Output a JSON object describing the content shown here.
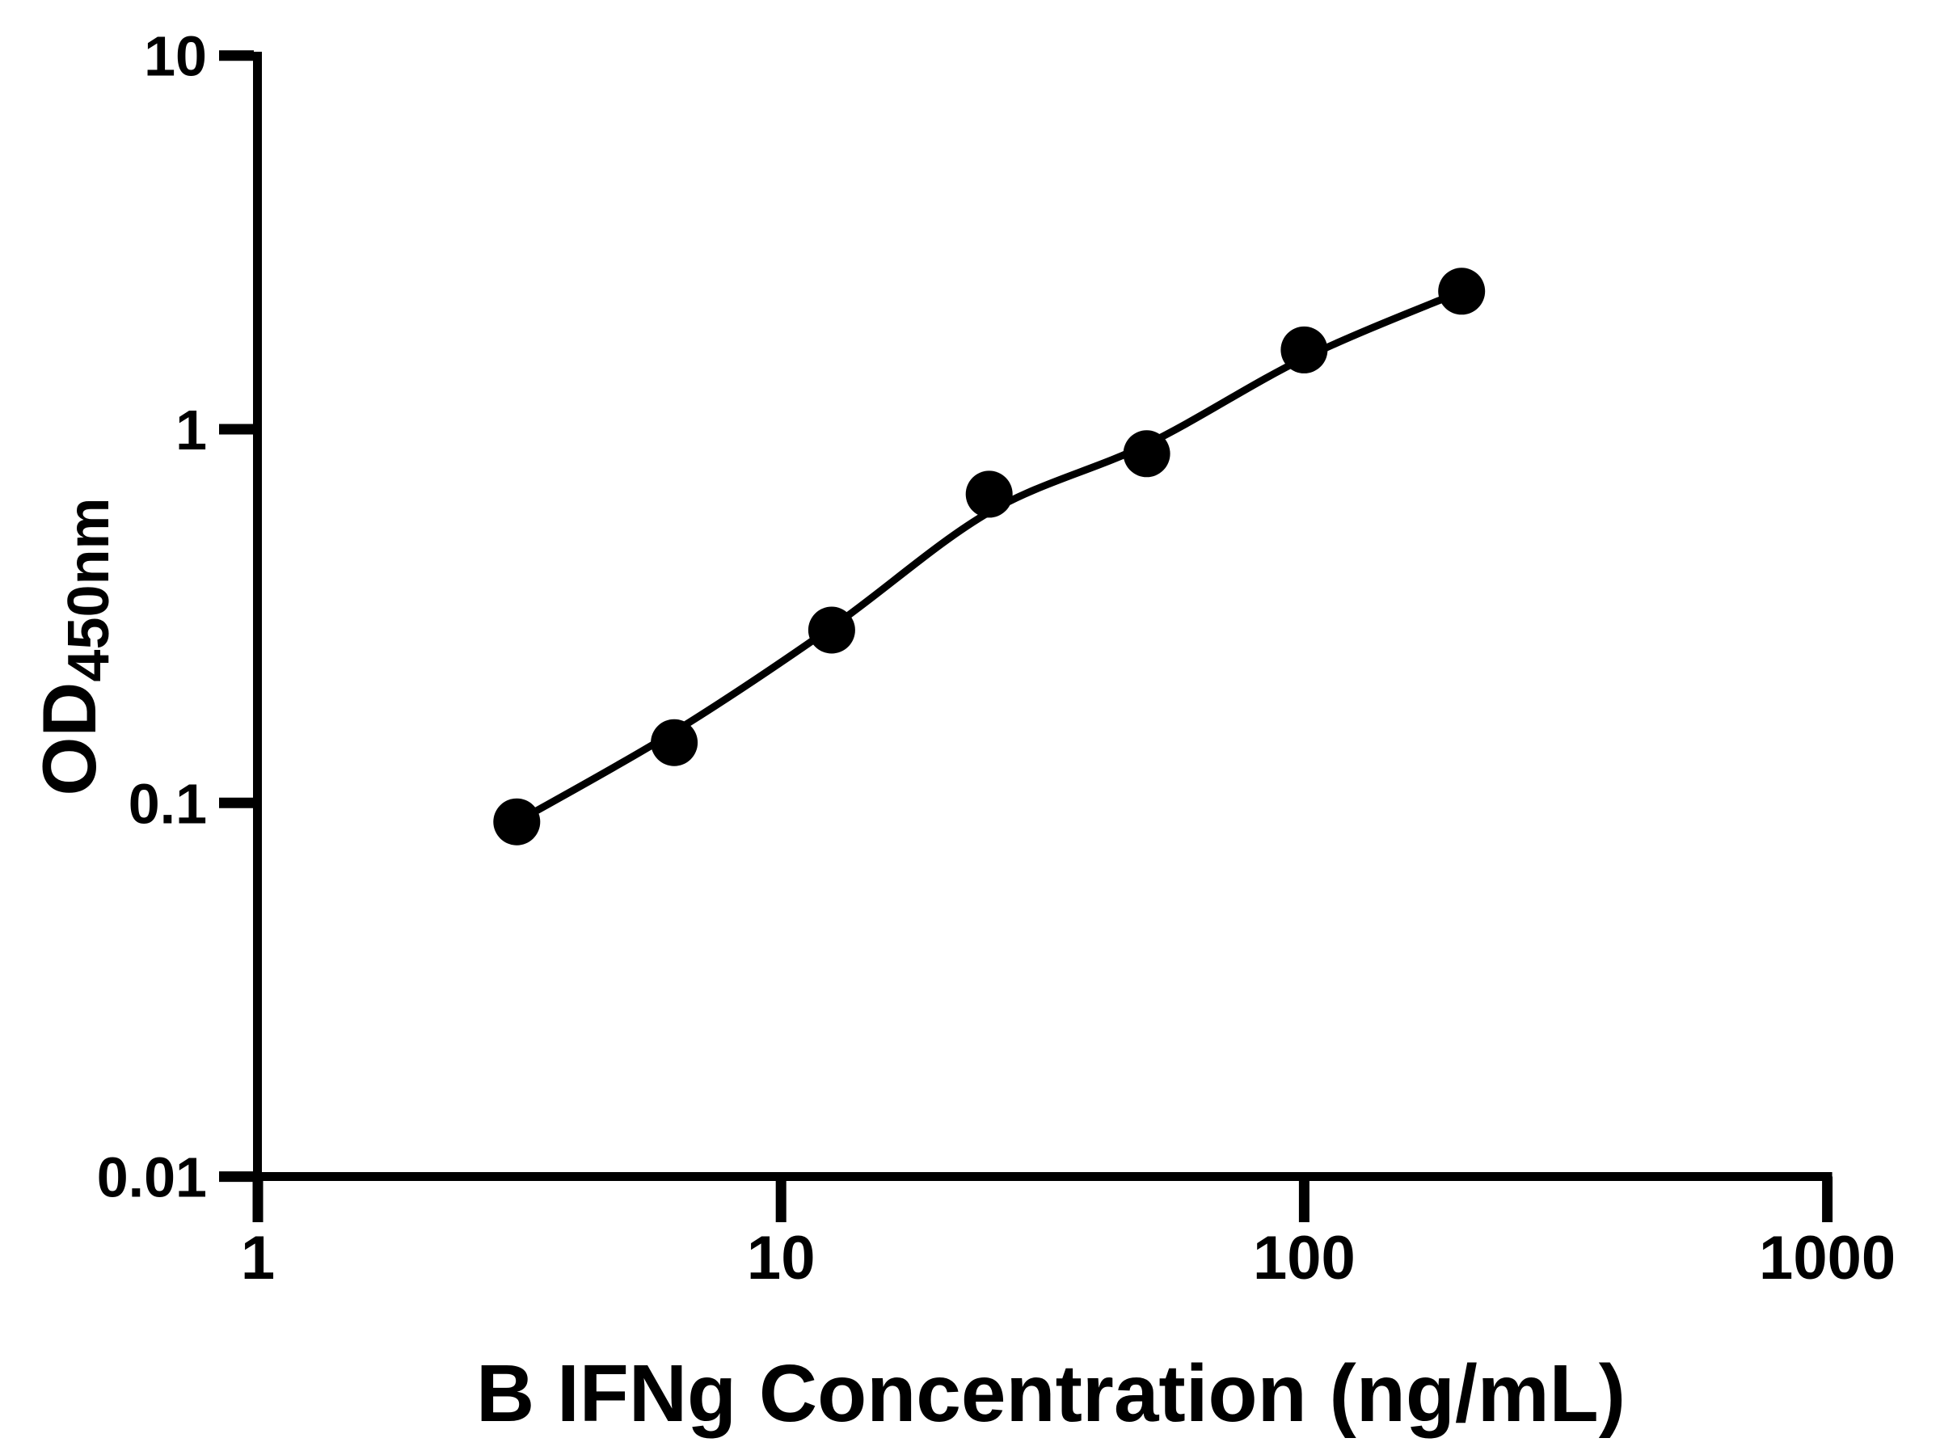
{
  "page": {
    "background": "#ffffff"
  },
  "chart_data": {
    "type": "scatter",
    "title": "",
    "xlabel": "B IFNg Concentration (ng/mL)",
    "ylabel": "OD450nm",
    "ylabel_main": "OD",
    "ylabel_sub": "450nm",
    "x_scale": "log",
    "y_scale": "log",
    "xlim": [
      1,
      1000
    ],
    "ylim": [
      0.01,
      10
    ],
    "grid": false,
    "legend": "none",
    "axis_color": "#000000",
    "marker_color": "#000000",
    "line_color": "#000000",
    "x_ticks": [
      {
        "value": 1,
        "label": "1"
      },
      {
        "value": 10,
        "label": "10"
      },
      {
        "value": 100,
        "label": "100"
      },
      {
        "value": 1000,
        "label": "1000"
      }
    ],
    "y_ticks": [
      {
        "value": 10,
        "label": "10"
      },
      {
        "value": 1,
        "label": "1"
      },
      {
        "value": 0.1,
        "label": "0.1"
      },
      {
        "value": 0.01,
        "label": "0.01"
      }
    ],
    "series": [
      {
        "marker": "circle",
        "color": "#000000",
        "points": [
          {
            "x": 3.125,
            "y": 0.089
          },
          {
            "x": 6.25,
            "y": 0.145
          },
          {
            "x": 12.5,
            "y": 0.29
          },
          {
            "x": 25,
            "y": 0.67
          },
          {
            "x": 50,
            "y": 0.86
          },
          {
            "x": 100,
            "y": 1.63
          },
          {
            "x": 200,
            "y": 2.34
          }
        ]
      }
    ],
    "fit_curve": {
      "color": "#000000",
      "points": [
        {
          "x": 3.125,
          "y": 0.089
        },
        {
          "x": 6.25,
          "y": 0.155
        },
        {
          "x": 12.5,
          "y": 0.295
        },
        {
          "x": 25,
          "y": 0.6
        },
        {
          "x": 50,
          "y": 0.91
        },
        {
          "x": 100,
          "y": 1.55
        },
        {
          "x": 200,
          "y": 2.34
        }
      ]
    }
  }
}
